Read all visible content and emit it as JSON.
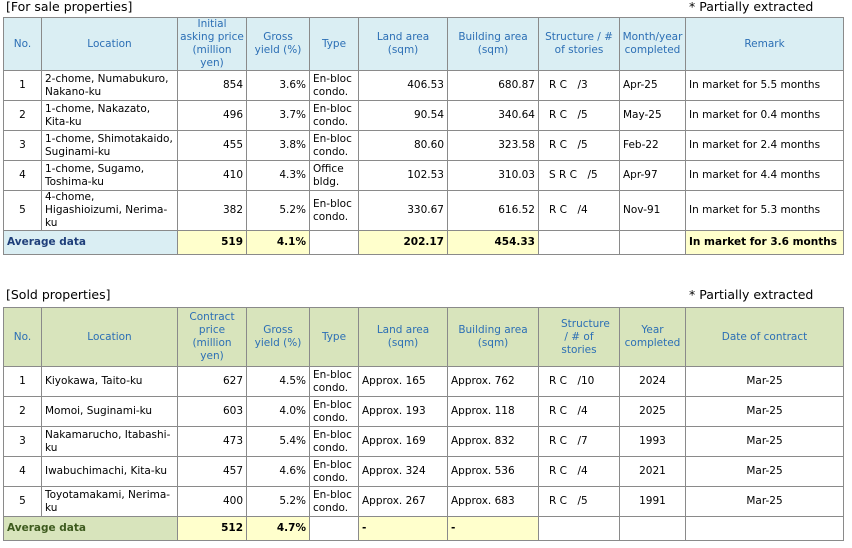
{
  "for_sale": {
    "caption": "[For sale properties]",
    "note": "* Partially extracted",
    "headers": [
      "No.",
      "Location",
      "Initial asking price (million yen)",
      "Gross yield (%)",
      "Type",
      "Land area (sqm)",
      "Building area (sqm)",
      "Structure / # of stories",
      "Month/year completed",
      "Remark"
    ],
    "rows": [
      [
        "1",
        "2-chome, Numabukuro, Nakano-ku",
        "854",
        "3.6%",
        "En-bloc condo.",
        "406.53",
        "680.87",
        "R C　/3",
        "Apr-25",
        "In market for 5.5 months"
      ],
      [
        "2",
        "1-chome, Nakazato, Kita-ku",
        "496",
        "3.7%",
        "En-bloc condo.",
        "90.54",
        "340.64",
        "R C　/5",
        "May-25",
        "In market for 0.4 months"
      ],
      [
        "3",
        "1-chome, Shimotakaido, Suginami-ku",
        "455",
        "3.8%",
        "En-bloc condo.",
        "80.60",
        "323.58",
        "R C　/5",
        "Feb-22",
        "In market for 2.4 months"
      ],
      [
        "4",
        "1-chome, Sugamo, Toshima-ku",
        "410",
        "4.3%",
        "Office bldg.",
        "102.53",
        "310.03",
        "S R C　/5",
        "Apr-97",
        "In market for 4.4 months"
      ],
      [
        "5",
        "4-chome, Higashioizumi, Nerima-ku",
        "382",
        "5.2%",
        "En-bloc condo.",
        "330.67",
        "616.52",
        "R C　/4",
        "Nov-91",
        "In market for 5.3 months"
      ]
    ],
    "average": {
      "label": "Average data",
      "price": "519",
      "yield": "4.1%",
      "land": "202.17",
      "building": "454.33",
      "remark": "In market for 3.6 months"
    }
  },
  "sold": {
    "caption": "[Sold properties]",
    "note": "* Partially extracted",
    "headers": [
      "No.",
      "Location",
      "Contract price (million yen)",
      "Gross yield (%)",
      "Type",
      "Land area (sqm)",
      "Building area (sqm)",
      "Structure / # of stories",
      "Year completed",
      "Date of contract"
    ],
    "rows": [
      [
        "1",
        "Kiyokawa, Taito-ku",
        "627",
        "4.5%",
        "En-bloc condo.",
        "Approx. 165",
        "Approx. 762",
        "R C　/10",
        "2024",
        "Mar-25"
      ],
      [
        "2",
        "Momoi, Suginami-ku",
        "603",
        "4.0%",
        "En-bloc condo.",
        "Approx. 193",
        "Approx. 118",
        "R C　/4",
        "2025",
        "Mar-25"
      ],
      [
        "3",
        "Nakamarucho, Itabashi-ku",
        "473",
        "5.4%",
        "En-bloc condo.",
        "Approx. 169",
        "Approx. 832",
        "R C　/7",
        "1993",
        "Mar-25"
      ],
      [
        "4",
        "Iwabuchimachi, Kita-ku",
        "457",
        "4.6%",
        "En-bloc condo.",
        "Approx. 324",
        "Approx. 536",
        "R C　/4",
        "2021",
        "Mar-25"
      ],
      [
        "5",
        "Toyotamakami, Nerima-ku",
        "400",
        "5.2%",
        "En-bloc condo.",
        "Approx. 267",
        "Approx. 683",
        "R C　/5",
        "1991",
        "Mar-25"
      ]
    ],
    "average": {
      "label": "Average data",
      "price": "512",
      "yield": "4.7%",
      "land": "-",
      "building": "-"
    }
  }
}
